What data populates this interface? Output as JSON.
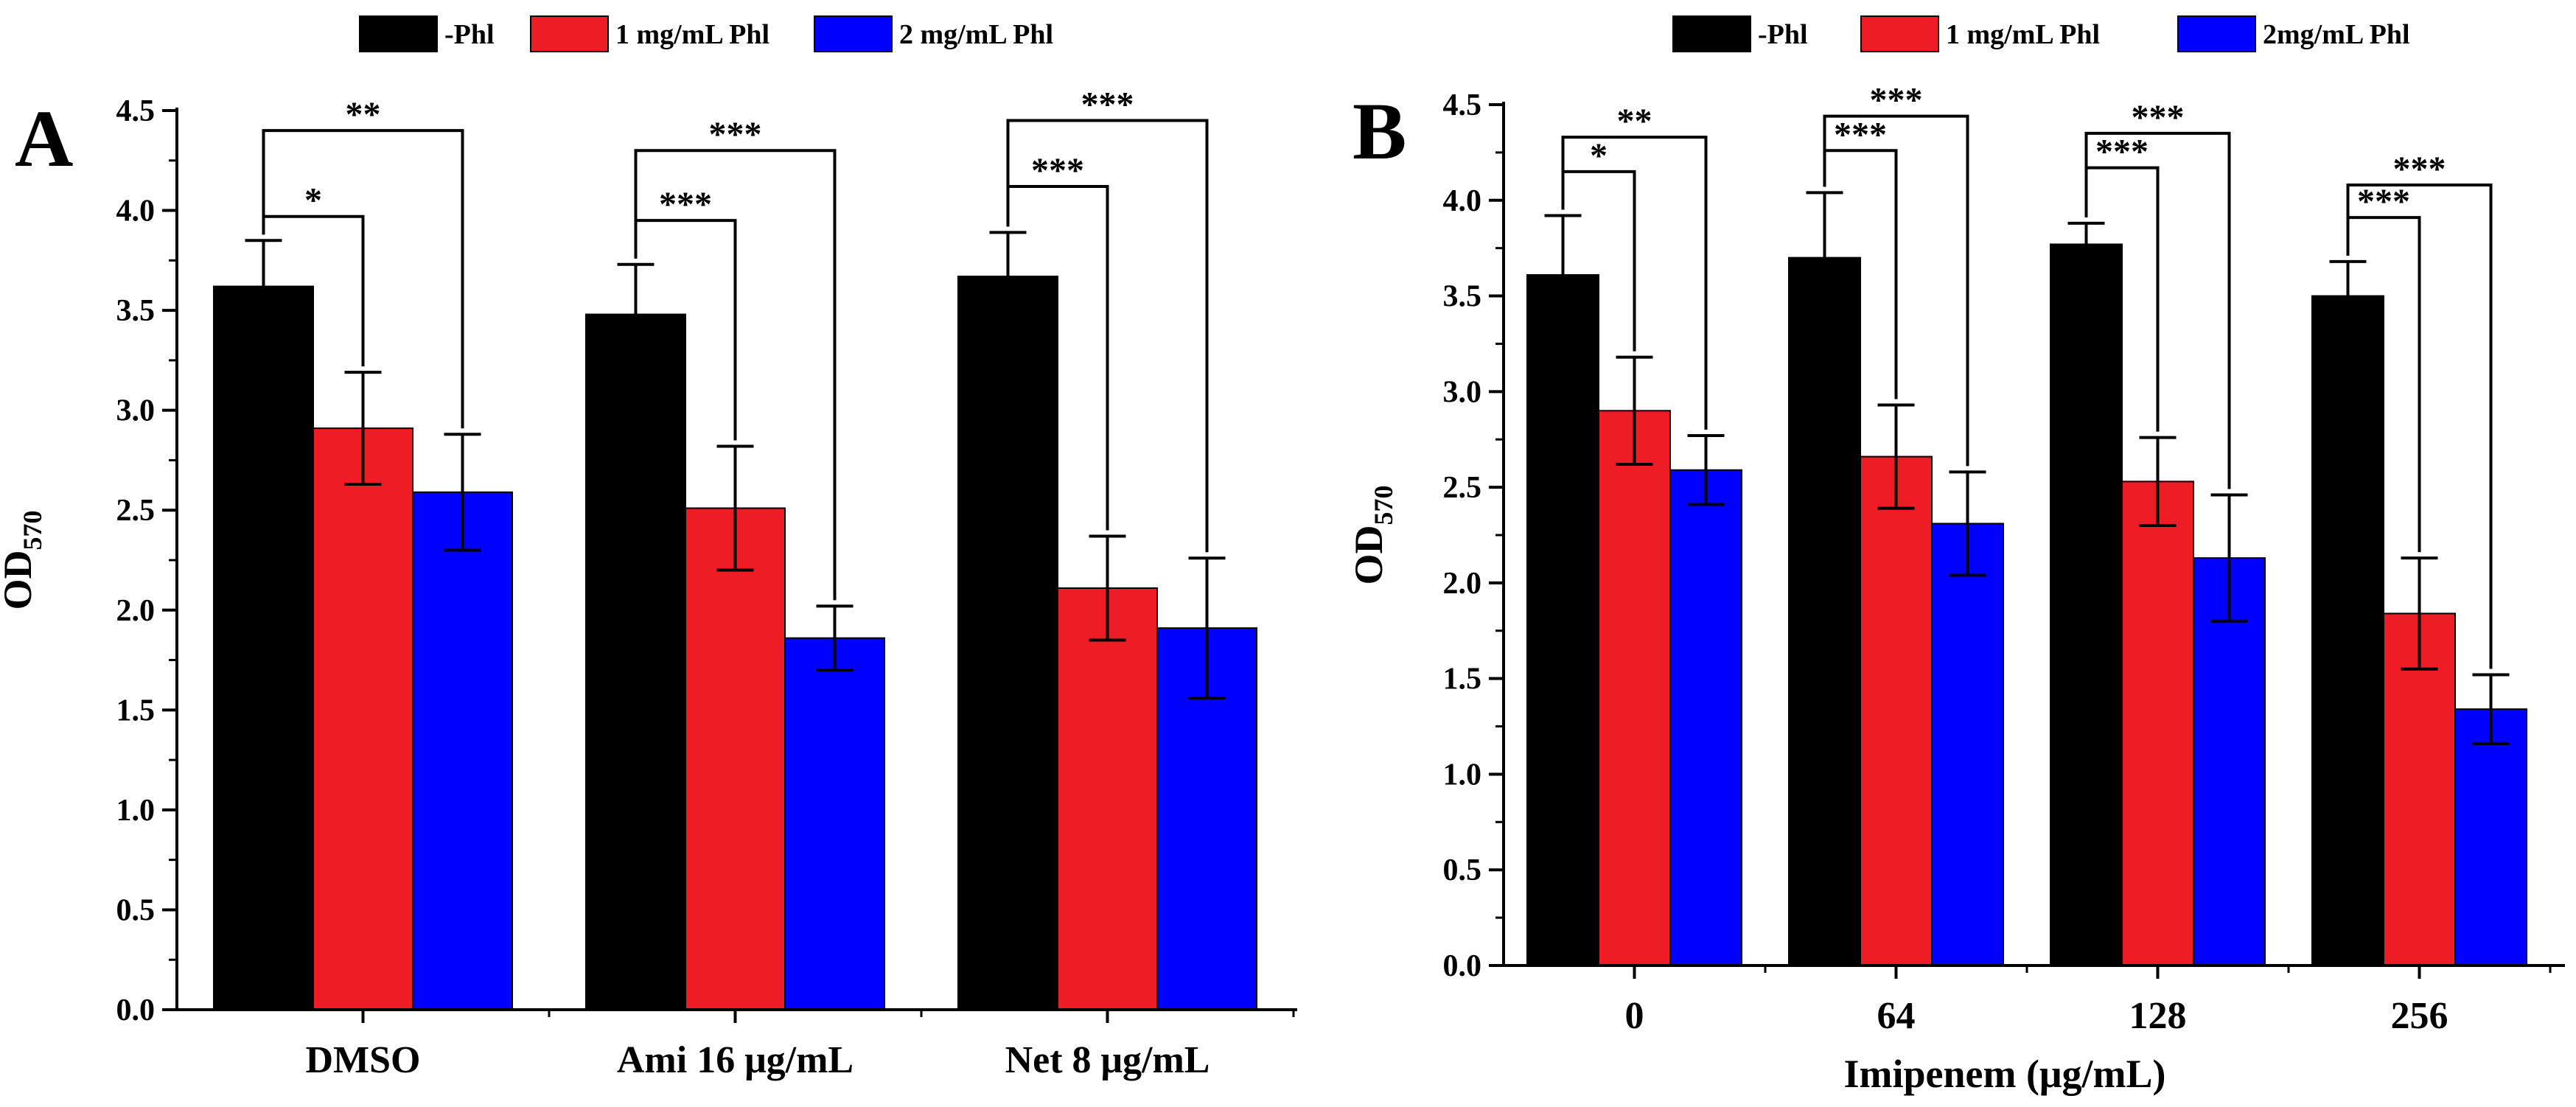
{
  "chart_data": [
    {
      "panel_label": "A",
      "type": "bar",
      "legend": [
        {
          "name": "-Phl",
          "color": "#000000"
        },
        {
          "name": "1 mg/mL Phl",
          "color": "#ee1c24"
        },
        {
          "name": "2 mg/mL Phl",
          "color": "#0000ff"
        }
      ],
      "categories": [
        "DMSO",
        "Ami 16 μg/mL",
        "Net 8 μg/mL"
      ],
      "series": [
        {
          "name": "-Phl",
          "color": "#000000",
          "values": [
            3.62,
            3.48,
            3.67
          ],
          "errors": [
            0.23,
            0.25,
            0.22
          ]
        },
        {
          "name": "1 mg/mL Phl",
          "color": "#ee1c24",
          "values": [
            2.91,
            2.51,
            2.11
          ],
          "errors": [
            0.28,
            0.31,
            0.26
          ]
        },
        {
          "name": "2 mg/mL Phl",
          "color": "#0000ff",
          "values": [
            2.59,
            1.86,
            1.91
          ],
          "errors": [
            0.29,
            0.16,
            0.35
          ]
        }
      ],
      "ylabel": "OD",
      "ylabel_sub": "570",
      "xlabel": "",
      "ylim": [
        0,
        4.5
      ],
      "yticks": [
        "0.0",
        "0.5",
        "1.0",
        "1.5",
        "2.0",
        "2.5",
        "3.0",
        "3.5",
        "4.0",
        "4.5"
      ],
      "significance": [
        {
          "category": 0,
          "from": 0,
          "to": 1,
          "label": "*",
          "y": 3.97
        },
        {
          "category": 0,
          "from": 0,
          "to": 2,
          "label": "**",
          "y": 4.4
        },
        {
          "category": 1,
          "from": 0,
          "to": 1,
          "label": "***",
          "y": 3.95
        },
        {
          "category": 1,
          "from": 0,
          "to": 2,
          "label": "***",
          "y": 4.3
        },
        {
          "category": 2,
          "from": 0,
          "to": 1,
          "label": "***",
          "y": 4.12
        },
        {
          "category": 2,
          "from": 0,
          "to": 2,
          "label": "***",
          "y": 4.45
        }
      ]
    },
    {
      "panel_label": "B",
      "type": "bar",
      "legend": [
        {
          "name": "-Phl",
          "color": "#000000"
        },
        {
          "name": "1 mg/mL Phl",
          "color": "#ee1c24"
        },
        {
          "name": "2mg/mL Phl",
          "color": "#0000ff"
        }
      ],
      "categories": [
        "0",
        "64",
        "128",
        "256"
      ],
      "series": [
        {
          "name": "-Phl",
          "color": "#000000",
          "values": [
            3.61,
            3.7,
            3.77,
            3.5
          ],
          "errors": [
            0.31,
            0.34,
            0.11,
            0.18
          ]
        },
        {
          "name": "1 mg/mL Phl",
          "color": "#ee1c24",
          "values": [
            2.9,
            2.66,
            2.53,
            1.84
          ],
          "errors": [
            0.28,
            0.27,
            0.23,
            0.29
          ]
        },
        {
          "name": "2mg/mL Phl",
          "color": "#0000ff",
          "values": [
            2.59,
            2.31,
            2.13,
            1.34
          ],
          "errors": [
            0.18,
            0.27,
            0.33,
            0.18
          ]
        }
      ],
      "ylabel": "OD",
      "ylabel_sub": "570",
      "xlabel": "Imipenem (μg/mL)",
      "ylim": [
        0,
        4.5
      ],
      "yticks": [
        "0.0",
        "0.5",
        "1.0",
        "1.5",
        "2.0",
        "2.5",
        "3.0",
        "3.5",
        "4.0",
        "4.5"
      ],
      "significance": [
        {
          "category": 0,
          "from": 0,
          "to": 1,
          "label": "*",
          "y": 4.15
        },
        {
          "category": 0,
          "from": 0,
          "to": 2,
          "label": "**",
          "y": 4.33
        },
        {
          "category": 1,
          "from": 0,
          "to": 1,
          "label": "***",
          "y": 4.26
        },
        {
          "category": 1,
          "from": 0,
          "to": 2,
          "label": "***",
          "y": 4.44
        },
        {
          "category": 2,
          "from": 0,
          "to": 1,
          "label": "***",
          "y": 4.17
        },
        {
          "category": 2,
          "from": 0,
          "to": 2,
          "label": "***",
          "y": 4.35
        },
        {
          "category": 3,
          "from": 0,
          "to": 1,
          "label": "***",
          "y": 3.91
        },
        {
          "category": 3,
          "from": 0,
          "to": 2,
          "label": "***",
          "y": 4.08
        }
      ]
    }
  ]
}
